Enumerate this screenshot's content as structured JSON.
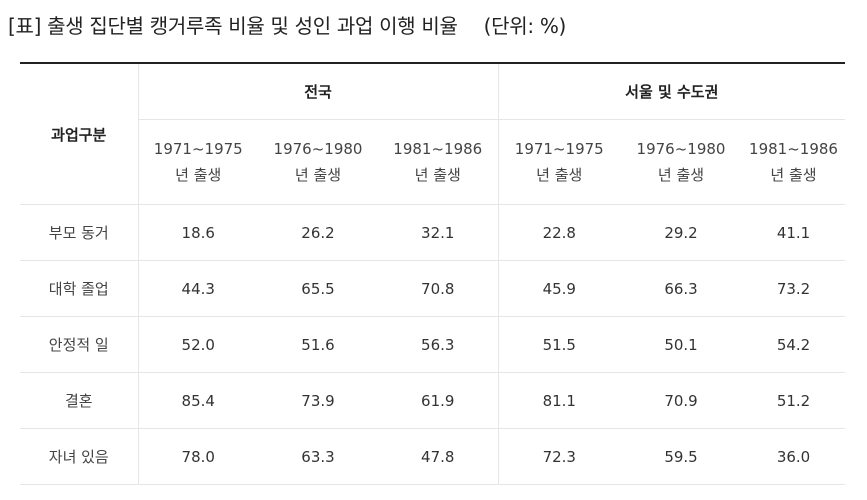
{
  "caption": {
    "title": "[표] 출생 집단별 캥거루족 비율 및 성인 과업 이행 비율",
    "unit": "(단위: %)"
  },
  "table": {
    "corner_label": "과업구분",
    "groups": [
      "전국",
      "서울 및 수도권"
    ],
    "periods": [
      {
        "years": "1971~1975",
        "suffix": "년 출생"
      },
      {
        "years": "1976~1980",
        "suffix": "년 출생"
      },
      {
        "years": "1981~1986",
        "suffix": "년 출생"
      },
      {
        "years": "1971~1975",
        "suffix": "년 출생"
      },
      {
        "years": "1976~1980",
        "suffix": "년 출생"
      },
      {
        "years": "1981~1986",
        "suffix": "년 출생"
      }
    ],
    "rows": [
      {
        "label": "부모 동거",
        "values": [
          "18.6",
          "26.2",
          "32.1",
          "22.8",
          "29.2",
          "41.1"
        ]
      },
      {
        "label": "대학 졸업",
        "values": [
          "44.3",
          "65.5",
          "70.8",
          "45.9",
          "66.3",
          "73.2"
        ]
      },
      {
        "label": "안정적 일",
        "values": [
          "52.0",
          "51.6",
          "56.3",
          "51.5",
          "50.1",
          "54.2"
        ]
      },
      {
        "label": "결혼",
        "values": [
          "85.4",
          "73.9",
          "61.9",
          "81.1",
          "70.9",
          "51.2"
        ]
      },
      {
        "label": "자녀 있음",
        "values": [
          "78.0",
          "63.3",
          "47.8",
          "72.3",
          "59.5",
          "36.0"
        ]
      }
    ]
  }
}
